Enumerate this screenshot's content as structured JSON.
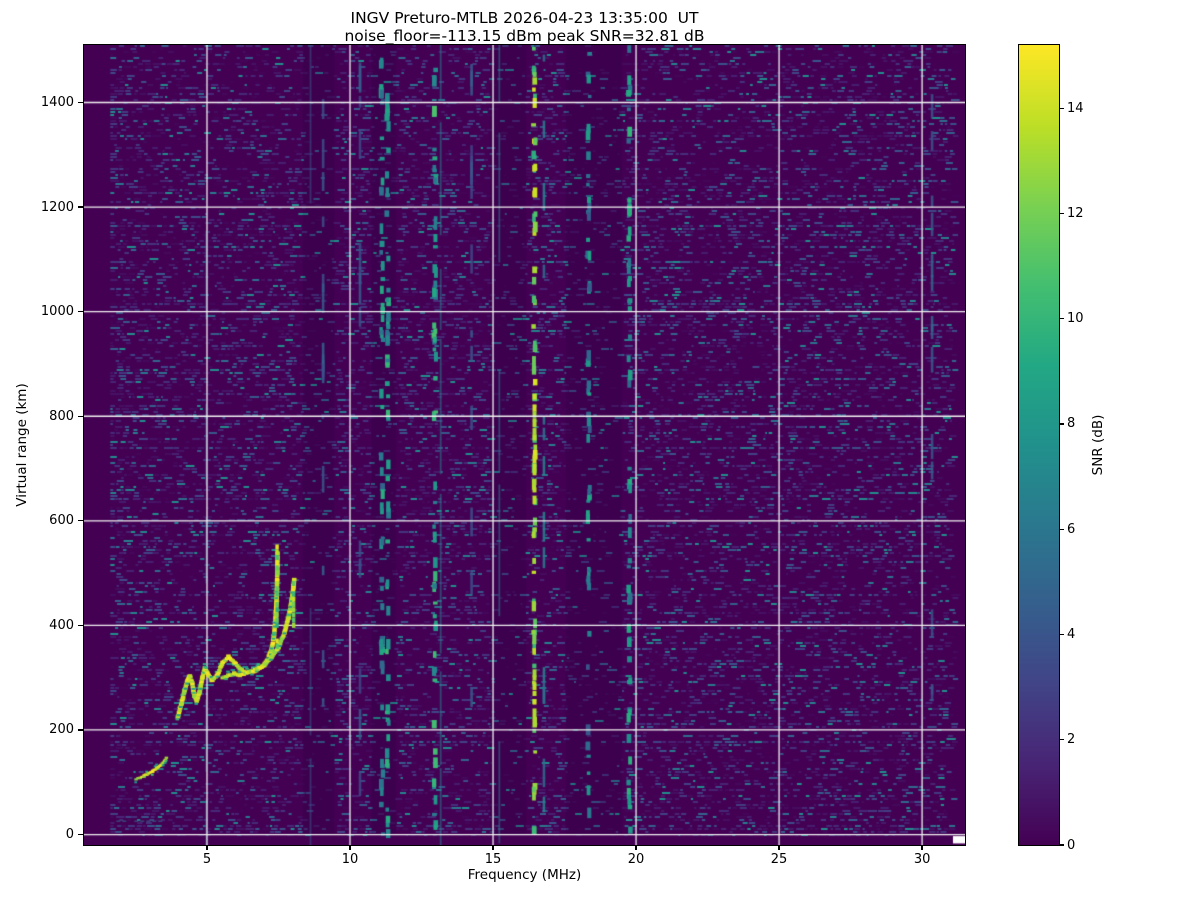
{
  "chart_data": {
    "type": "heatmap",
    "station": "INGV Preturo-MTLB",
    "datetime_ut": "2026-04-23 13:35:00 UT",
    "title": "INGV Preturo-MTLB 2026-04-23 13:35:00  UT",
    "subtitle": "noise_floor=-113.15 dBm peak SNR=32.81 dB",
    "noise_floor_dbm": -113.15,
    "peak_snr_db": 32.81,
    "xlabel": "Frequency (MHz)",
    "ylabel": "Virtual range (km)",
    "colorbar_label": "SNR (dB)",
    "colormap": "viridis",
    "grid_color": "#f0f0f0",
    "xlim": [
      0.7,
      31.5
    ],
    "ylim": [
      -20,
      1510
    ],
    "clim": [
      0,
      15.2
    ],
    "x_ticks": [
      5,
      10,
      15,
      20,
      25,
      30
    ],
    "y_ticks": [
      0,
      200,
      400,
      600,
      800,
      1000,
      1200,
      1400
    ],
    "colorbar_ticks": [
      0,
      2,
      4,
      6,
      8,
      10,
      12,
      14
    ],
    "colormap_stops": [
      [
        0.0,
        "#440154"
      ],
      [
        0.1,
        "#482475"
      ],
      [
        0.2,
        "#414487"
      ],
      [
        0.3,
        "#355f8d"
      ],
      [
        0.4,
        "#2a788e"
      ],
      [
        0.5,
        "#21918c"
      ],
      [
        0.6,
        "#22a884"
      ],
      [
        0.7,
        "#44bf70"
      ],
      [
        0.8,
        "#7ad151"
      ],
      [
        0.9,
        "#bddf26"
      ],
      [
        1.0,
        "#fde725"
      ]
    ],
    "blank_bands_mhz": [
      [
        0.7,
        1.62
      ],
      [
        31.08,
        31.5
      ]
    ],
    "dark_bands_mhz": [
      [
        8.35,
        9.45
      ],
      [
        10.75,
        11.6
      ],
      [
        14.9,
        16.15
      ],
      [
        17.55,
        19.5
      ]
    ],
    "noise": {
      "fmin": 1.62,
      "fmax": 31.08,
      "density": 0.4,
      "mean_snr_db": 2.1,
      "teal_fraction": 0.043,
      "boost_band_mhz": [
        1.62,
        2.7
      ],
      "seed": 42
    },
    "interference_lines": [
      {
        "freq_mhz": 4.97,
        "snr_db": 4.5,
        "style": "line"
      },
      {
        "freq_mhz": 8.62,
        "snr_db": 3.8,
        "style": "line"
      },
      {
        "freq_mhz": 9.06,
        "snr_db": 5.0,
        "style": "segments"
      },
      {
        "freq_mhz": 10.35,
        "snr_db": 4.5,
        "style": "segments"
      },
      {
        "freq_mhz": 11.12,
        "snr_db": 9.5,
        "style": "dashes"
      },
      {
        "freq_mhz": 11.32,
        "snr_db": 10.5,
        "style": "dashes"
      },
      {
        "freq_mhz": 12.97,
        "snr_db": 11.0,
        "style": "dashes"
      },
      {
        "freq_mhz": 13.17,
        "snr_db": 6.5,
        "style": "line"
      },
      {
        "freq_mhz": 14.25,
        "snr_db": 4.5,
        "style": "segments"
      },
      {
        "freq_mhz": 15.22,
        "snr_db": 6.0,
        "style": "line"
      },
      {
        "freq_mhz": 16.45,
        "snr_db": 14.5,
        "style": "dashes"
      },
      {
        "freq_mhz": 16.78,
        "snr_db": 7.0,
        "style": "segments"
      },
      {
        "freq_mhz": 18.35,
        "snr_db": 9.0,
        "style": "dashes"
      },
      {
        "freq_mhz": 19.77,
        "snr_db": 10.0,
        "style": "dashes"
      },
      {
        "freq_mhz": 30.35,
        "snr_db": 5.0,
        "style": "segments"
      }
    ],
    "traces": {
      "e_layer": [
        [
          2.52,
          106
        ],
        [
          2.66,
          109
        ],
        [
          2.8,
          112
        ],
        [
          2.95,
          116
        ],
        [
          3.1,
          121
        ],
        [
          3.25,
          127
        ],
        [
          3.4,
          134
        ],
        [
          3.52,
          141
        ],
        [
          3.58,
          147
        ]
      ],
      "f_layer_ordinary": [
        [
          3.98,
          225
        ],
        [
          4.1,
          248
        ],
        [
          4.22,
          275
        ],
        [
          4.32,
          295
        ],
        [
          4.4,
          303
        ],
        [
          4.48,
          290
        ],
        [
          4.56,
          265
        ],
        [
          4.64,
          256
        ],
        [
          4.74,
          272
        ],
        [
          4.84,
          300
        ],
        [
          4.93,
          318
        ],
        [
          5.05,
          305
        ],
        [
          5.18,
          295
        ],
        [
          5.35,
          303
        ],
        [
          5.55,
          330
        ],
        [
          5.75,
          340
        ],
        [
          5.95,
          330
        ],
        [
          6.15,
          318
        ],
        [
          6.4,
          310
        ],
        [
          6.65,
          312
        ],
        [
          6.9,
          320
        ],
        [
          7.1,
          333
        ],
        [
          7.25,
          352
        ],
        [
          7.34,
          378
        ],
        [
          7.4,
          415
        ],
        [
          7.44,
          458
        ],
        [
          7.46,
          505
        ],
        [
          7.47,
          540
        ]
      ],
      "f_layer_extraordinary": [
        [
          5.55,
          300
        ],
        [
          5.75,
          305
        ],
        [
          5.95,
          308
        ],
        [
          6.15,
          305
        ],
        [
          6.35,
          308
        ],
        [
          6.55,
          312
        ],
        [
          6.75,
          316
        ],
        [
          7.0,
          324
        ],
        [
          7.25,
          338
        ],
        [
          7.5,
          358
        ],
        [
          7.7,
          385
        ],
        [
          7.86,
          416
        ],
        [
          7.96,
          448
        ],
        [
          8.02,
          472
        ],
        [
          8.05,
          488
        ]
      ],
      "o_mode_cusp": {
        "freq_mhz": 7.45,
        "range_km": [
          360,
          552
        ]
      },
      "x_mode_cusp": {
        "freq_mhz": 8.03,
        "range_km": [
          400,
          490
        ]
      },
      "ground_artifact": {
        "range_km": 27,
        "fmin_mhz": 1.62,
        "fmax_mhz": 3.55
      }
    },
    "artifacts": {
      "white_block": {
        "fmin_mhz": 31.08,
        "fmax_mhz": 31.5,
        "km_min": -17,
        "km_max": -3,
        "color": "#ffffff"
      }
    }
  }
}
